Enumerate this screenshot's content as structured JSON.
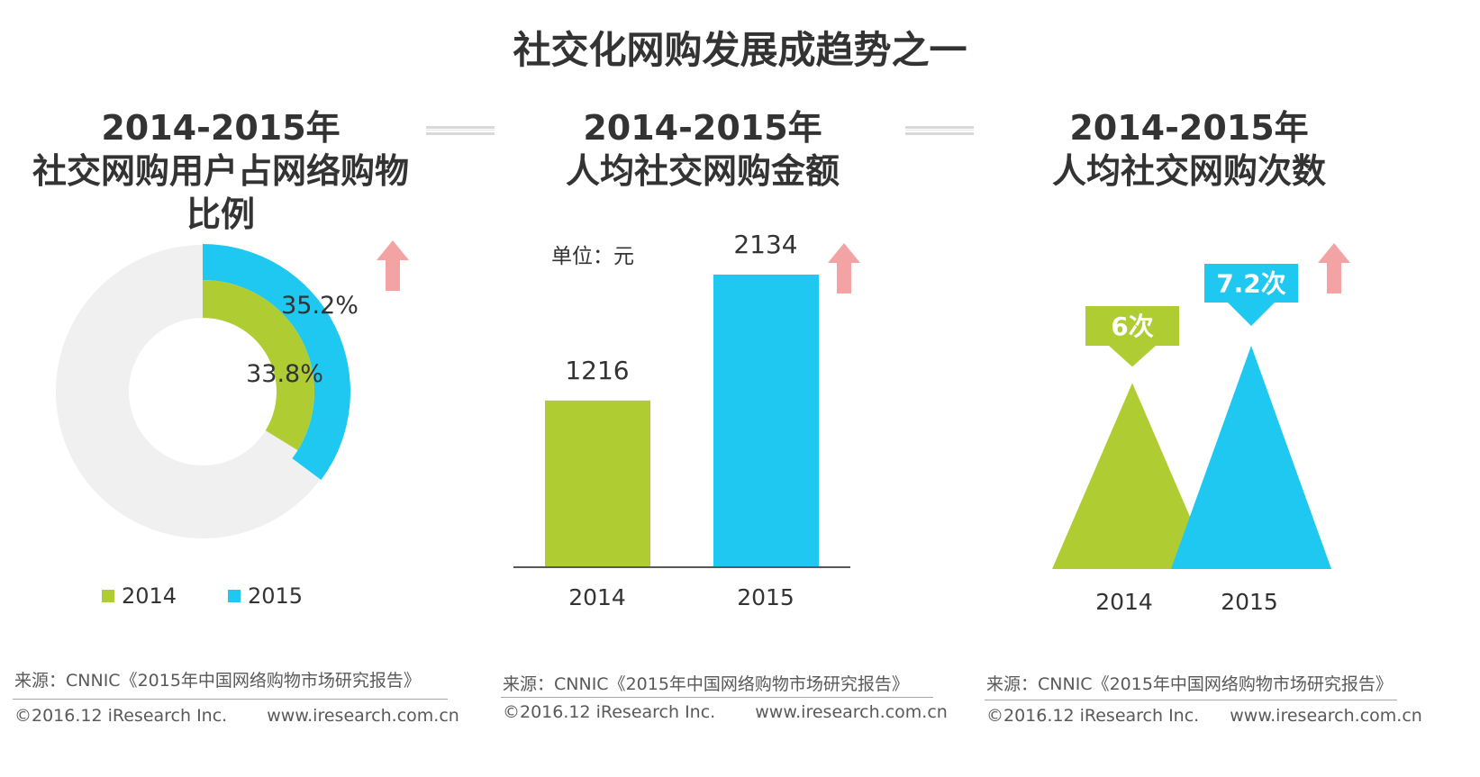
{
  "title": "社交化网购发展成趋势之一",
  "colors": {
    "green": "#afcd32",
    "blue": "#1ec8f0",
    "gray": "#f0f0f0",
    "arrow": "#f3a3a3",
    "text": "#333333"
  },
  "icons": {
    "up_arrow": "up-arrow-icon"
  },
  "panels": [
    {
      "title_lines": [
        "2014-2015年",
        "社交网购用户占网络购物",
        "比例"
      ]
    },
    {
      "title_lines": [
        "2014-2015年",
        "人均社交网购金额"
      ],
      "unit": "单位：元"
    },
    {
      "title_lines": [
        "2014-2015年",
        "人均社交网购次数"
      ]
    }
  ],
  "legend": [
    {
      "label": "2014"
    },
    {
      "label": "2015"
    }
  ],
  "source": "来源：CNNIC《2015年中国网络购物市场研究报告》",
  "copyright": "©2016.12 iResearch Inc.",
  "website": "www.iresearch.com.cn",
  "chart_data": [
    {
      "type": "pie",
      "variant": "donut",
      "title": "2014-2015年 社交网购用户占网络购物比例",
      "series": [
        {
          "name": "2015",
          "values": [
            35.2
          ],
          "labels": [
            "35.2%"
          ],
          "ring": "outer"
        },
        {
          "name": "2014",
          "values": [
            33.8
          ],
          "labels": [
            "33.8%"
          ],
          "ring": "inner"
        }
      ],
      "unit": "%"
    },
    {
      "type": "bar",
      "title": "2014-2015年 人均社交网购金额",
      "categories": [
        "2014",
        "2015"
      ],
      "values": [
        1216,
        2134
      ],
      "labels": [
        "1216",
        "2134"
      ],
      "ylabel": "单位：元",
      "ylim": [
        0,
        2150
      ]
    },
    {
      "type": "bar",
      "variant": "triangle",
      "title": "2014-2015年 人均社交网购次数",
      "categories": [
        "2014",
        "2015"
      ],
      "values": [
        6,
        7.2
      ],
      "labels": [
        "6次",
        "7.2次"
      ],
      "ylim": [
        0,
        7.2
      ]
    }
  ]
}
